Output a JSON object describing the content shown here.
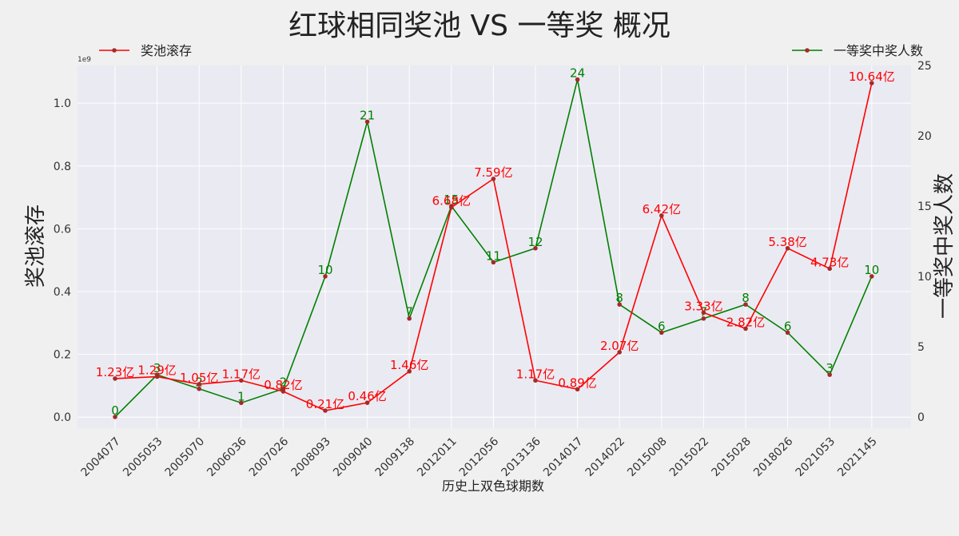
{
  "chart_data": {
    "type": "line",
    "title": "红球相同奖池 VS 一等奖 概况",
    "xlabel": "历史上双色球期数",
    "ylabel_left": "奖池滚存",
    "ylabel_right": "一等奖中奖人数",
    "left_axis_offset_label": "1e9",
    "categories": [
      "2004077",
      "2005053",
      "2005070",
      "2006036",
      "2007026",
      "2008093",
      "2009040",
      "2009138",
      "2012011",
      "2012056",
      "2013136",
      "2014017",
      "2014022",
      "2015008",
      "2015022",
      "2015028",
      "2018026",
      "2021053",
      "2021145"
    ],
    "ylim_left": [
      -0.035,
      1.12
    ],
    "yticks_left": [
      "0.0",
      "0.2",
      "0.4",
      "0.6",
      "0.8",
      "1.0"
    ],
    "ylim_right": [
      -0.8,
      25.0
    ],
    "yticks_right": [
      "0",
      "5",
      "10",
      "15",
      "20",
      "25"
    ],
    "grid": true,
    "series": [
      {
        "name": "奖池滚存",
        "axis": "left",
        "color": "#ff0000",
        "values_1e9": [
          0.123,
          0.129,
          0.105,
          0.117,
          0.082,
          0.021,
          0.046,
          0.146,
          0.668,
          0.759,
          0.117,
          0.089,
          0.207,
          0.642,
          0.333,
          0.282,
          0.538,
          0.473,
          1.064
        ],
        "labels": [
          "1.23亿",
          "1.29亿",
          "1.05亿",
          "1.17亿",
          "0.82亿",
          "0.21亿",
          "0.46亿",
          "1.46亿",
          "6.68亿",
          "7.59亿",
          "1.17亿",
          "0.89亿",
          "2.07亿",
          "6.42亿",
          "3.33亿",
          "2.82亿",
          "5.38亿",
          "4.73亿",
          "10.64亿"
        ]
      },
      {
        "name": "一等奖中奖人数",
        "axis": "right",
        "color": "#008000",
        "values": [
          0,
          3,
          2,
          1,
          2,
          10,
          21,
          7,
          15,
          11,
          12,
          24,
          8,
          6,
          7,
          8,
          6,
          3,
          10
        ],
        "labels": [
          "0",
          "3",
          "2",
          "1",
          "2",
          "10",
          "21",
          "7",
          "15",
          "11",
          "12",
          "24",
          "8",
          "6",
          "7",
          "8",
          "6",
          "3",
          "10"
        ]
      }
    ],
    "marker_color": "#a52a2a",
    "legend": [
      {
        "placement": "top-left",
        "series": "奖池滚存"
      },
      {
        "placement": "top-right",
        "series": "一等奖中奖人数"
      }
    ]
  }
}
